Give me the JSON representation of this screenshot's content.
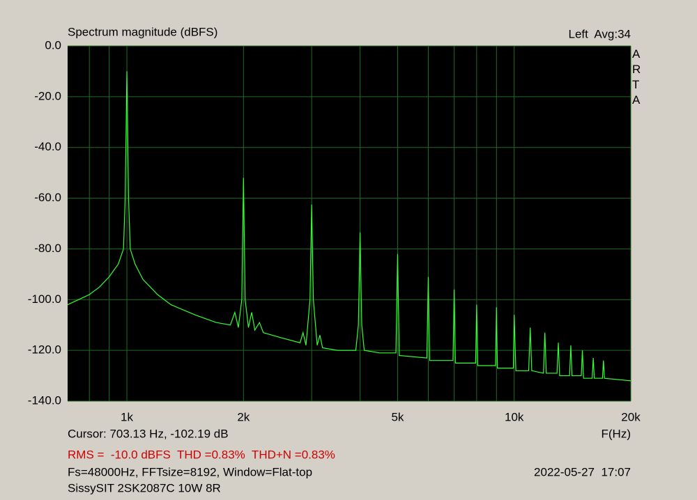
{
  "chart_data": {
    "type": "line",
    "title": "Spectrum magnitude (dBFS)",
    "channel": "Left  Avg:34",
    "brand": "ARTA",
    "xlabel": "F(Hz)",
    "cursor": "Cursor: 703.13 Hz, -102.19 dB",
    "stats": "RMS =  -10.0 dBFS  THD =0.83%  THD+N =0.83%",
    "settings": "Fs=48000Hz, FFTsize=8192, Window=Flat-top",
    "timestamp": "2022-05-27  17:07",
    "device": "SissySIT 2SK2087C 10W 8R",
    "log_x": true,
    "grid": true,
    "color": "#33ff33",
    "xlim": [
      703,
      20000
    ],
    "ylim": [
      -140,
      0
    ],
    "xticks": [
      {
        "value": 1000,
        "label": "1k"
      },
      {
        "value": 2000,
        "label": "2k"
      },
      {
        "value": 5000,
        "label": "5k"
      },
      {
        "value": 10000,
        "label": "10k"
      },
      {
        "value": 20000,
        "label": "20k"
      }
    ],
    "xgrid_minor": [
      800,
      900,
      3000,
      4000,
      6000,
      7000,
      8000,
      9000
    ],
    "yticks": [
      {
        "value": 0,
        "label": "0.0"
      },
      {
        "value": -20,
        "label": "-20.0"
      },
      {
        "value": -40,
        "label": "-40.0"
      },
      {
        "value": -60,
        "label": "-60.0"
      },
      {
        "value": -80,
        "label": "-80.0"
      },
      {
        "value": -100,
        "label": "-100.0"
      },
      {
        "value": -120,
        "label": "-120.0"
      },
      {
        "value": -140,
        "label": "-140.0"
      }
    ],
    "x": [
      703,
      750,
      800,
      850,
      900,
      950,
      980,
      990,
      1000,
      1010,
      1020,
      1050,
      1100,
      1200,
      1300,
      1500,
      1700,
      1850,
      1900,
      1940,
      1980,
      2000,
      2020,
      2060,
      2100,
      2140,
      2200,
      2250,
      2500,
      2800,
      2850,
      2900,
      2970,
      3000,
      3030,
      3100,
      3150,
      3200,
      3500,
      3900,
      3960,
      4000,
      4040,
      4100,
      4500,
      4950,
      5000,
      5050,
      5950,
      6000,
      6050,
      6950,
      7000,
      7050,
      7950,
      8000,
      8050,
      8950,
      9000,
      9050,
      9950,
      10000,
      10100,
      10900,
      11000,
      11100,
      11900,
      12000,
      12100,
      12900,
      13000,
      13100,
      13900,
      14000,
      14100,
      14900,
      15000,
      15100,
      15900,
      16000,
      16100,
      16900,
      17000,
      17100,
      20000
    ],
    "values": [
      -102,
      -100,
      -98,
      -95,
      -91,
      -86,
      -80,
      -60,
      -10,
      -60,
      -80,
      -86,
      -92,
      -98,
      -102,
      -106,
      -109,
      -110,
      -105,
      -111,
      -100,
      -52,
      -100,
      -111,
      -105,
      -112,
      -109,
      -113,
      -115,
      -117,
      -113,
      -118,
      -100,
      -62.5,
      -100,
      -118,
      -114,
      -119,
      -120,
      -120,
      -110,
      -73.5,
      -110,
      -120,
      -121,
      -121,
      -82,
      -122,
      -123,
      -91,
      -124,
      -124,
      -96,
      -125,
      -125,
      -102,
      -126,
      -126,
      -103,
      -127,
      -127,
      -106,
      -128,
      -128,
      -111,
      -128,
      -129,
      -113,
      -129,
      -129,
      -117,
      -130,
      -130,
      -118,
      -130,
      -130,
      -120,
      -131,
      -131,
      -123,
      -131,
      -131,
      -124,
      -131,
      -132
    ]
  }
}
